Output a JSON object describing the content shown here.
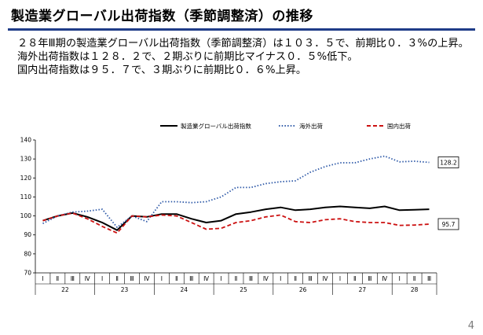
{
  "slide": {
    "title": "製造業グローバル出荷指数（季節調整済）の推移",
    "page_number": "4",
    "paragraphs": [
      "２８年Ⅲ期の製造業グローバル出荷指数（季節調整済）は１０３．５で、前期比０．３%の上昇。",
      "海外出荷指数は１２８．２で、２期ぶりに前期比マイナス０．５%低下。",
      "国内出荷指数は９５．７で、３期ぶりに前期比０．６%上昇。"
    ]
  },
  "colors": {
    "title_rule": "#1f3c88",
    "global": "#000000",
    "overseas": "#2f5aa8",
    "domestic": "#cc1111"
  },
  "chart_data": {
    "type": "line",
    "title": "",
    "xlabel": "",
    "ylabel": "",
    "ylim": [
      70,
      140
    ],
    "yticks": [
      70,
      80,
      90,
      100,
      110,
      120,
      130,
      140
    ],
    "grid": false,
    "legend_position": "top",
    "quarter_labels": [
      "Ⅰ",
      "Ⅱ",
      "Ⅲ",
      "Ⅳ",
      "Ⅰ",
      "Ⅱ",
      "Ⅲ",
      "Ⅳ",
      "Ⅰ",
      "Ⅱ",
      "Ⅲ",
      "Ⅳ",
      "Ⅰ",
      "Ⅱ",
      "Ⅲ",
      "Ⅳ",
      "Ⅰ",
      "Ⅱ",
      "Ⅲ",
      "Ⅳ",
      "Ⅰ",
      "Ⅱ",
      "Ⅲ",
      "Ⅳ",
      "Ⅰ",
      "Ⅱ",
      "Ⅲ"
    ],
    "year_groups": [
      {
        "label": "22",
        "start": 0,
        "count": 4
      },
      {
        "label": "23",
        "start": 4,
        "count": 4
      },
      {
        "label": "24",
        "start": 8,
        "count": 4
      },
      {
        "label": "25",
        "start": 12,
        "count": 4
      },
      {
        "label": "26",
        "start": 16,
        "count": 4
      },
      {
        "label": "27",
        "start": 20,
        "count": 4
      },
      {
        "label": "28",
        "start": 24,
        "count": 3
      }
    ],
    "series": [
      {
        "name": "製造業グローバル出荷指数",
        "style": "solid",
        "values": [
          97.5,
          100.0,
          101.5,
          99.5,
          96.5,
          92.5,
          100.0,
          99.5,
          101.0,
          101.0,
          98.5,
          96.5,
          97.5,
          101.0,
          102.0,
          103.5,
          104.5,
          103.0,
          103.5,
          104.5,
          105.0,
          104.5,
          104.0,
          105.0,
          103.0,
          103.2,
          103.5
        ]
      },
      {
        "name": "海外出荷",
        "style": "dotted",
        "values": [
          96.0,
          100.0,
          102.0,
          102.5,
          103.5,
          94.0,
          100.0,
          97.0,
          107.5,
          107.5,
          107.0,
          107.5,
          110.0,
          115.0,
          115.0,
          117.0,
          118.0,
          118.5,
          123.0,
          126.0,
          128.0,
          128.0,
          130.0,
          131.5,
          128.5,
          128.8,
          128.2
        ]
      },
      {
        "name": "国内出荷",
        "style": "dashed",
        "values": [
          97.5,
          100.0,
          101.5,
          98.5,
          94.5,
          91.0,
          100.0,
          99.5,
          100.5,
          100.0,
          96.5,
          93.0,
          93.5,
          96.5,
          97.5,
          99.5,
          100.5,
          97.0,
          96.5,
          98.0,
          98.5,
          97.0,
          96.5,
          96.5,
          95.0,
          95.2,
          95.7
        ]
      }
    ],
    "end_labels": [
      "128.2",
      "95.7"
    ]
  }
}
